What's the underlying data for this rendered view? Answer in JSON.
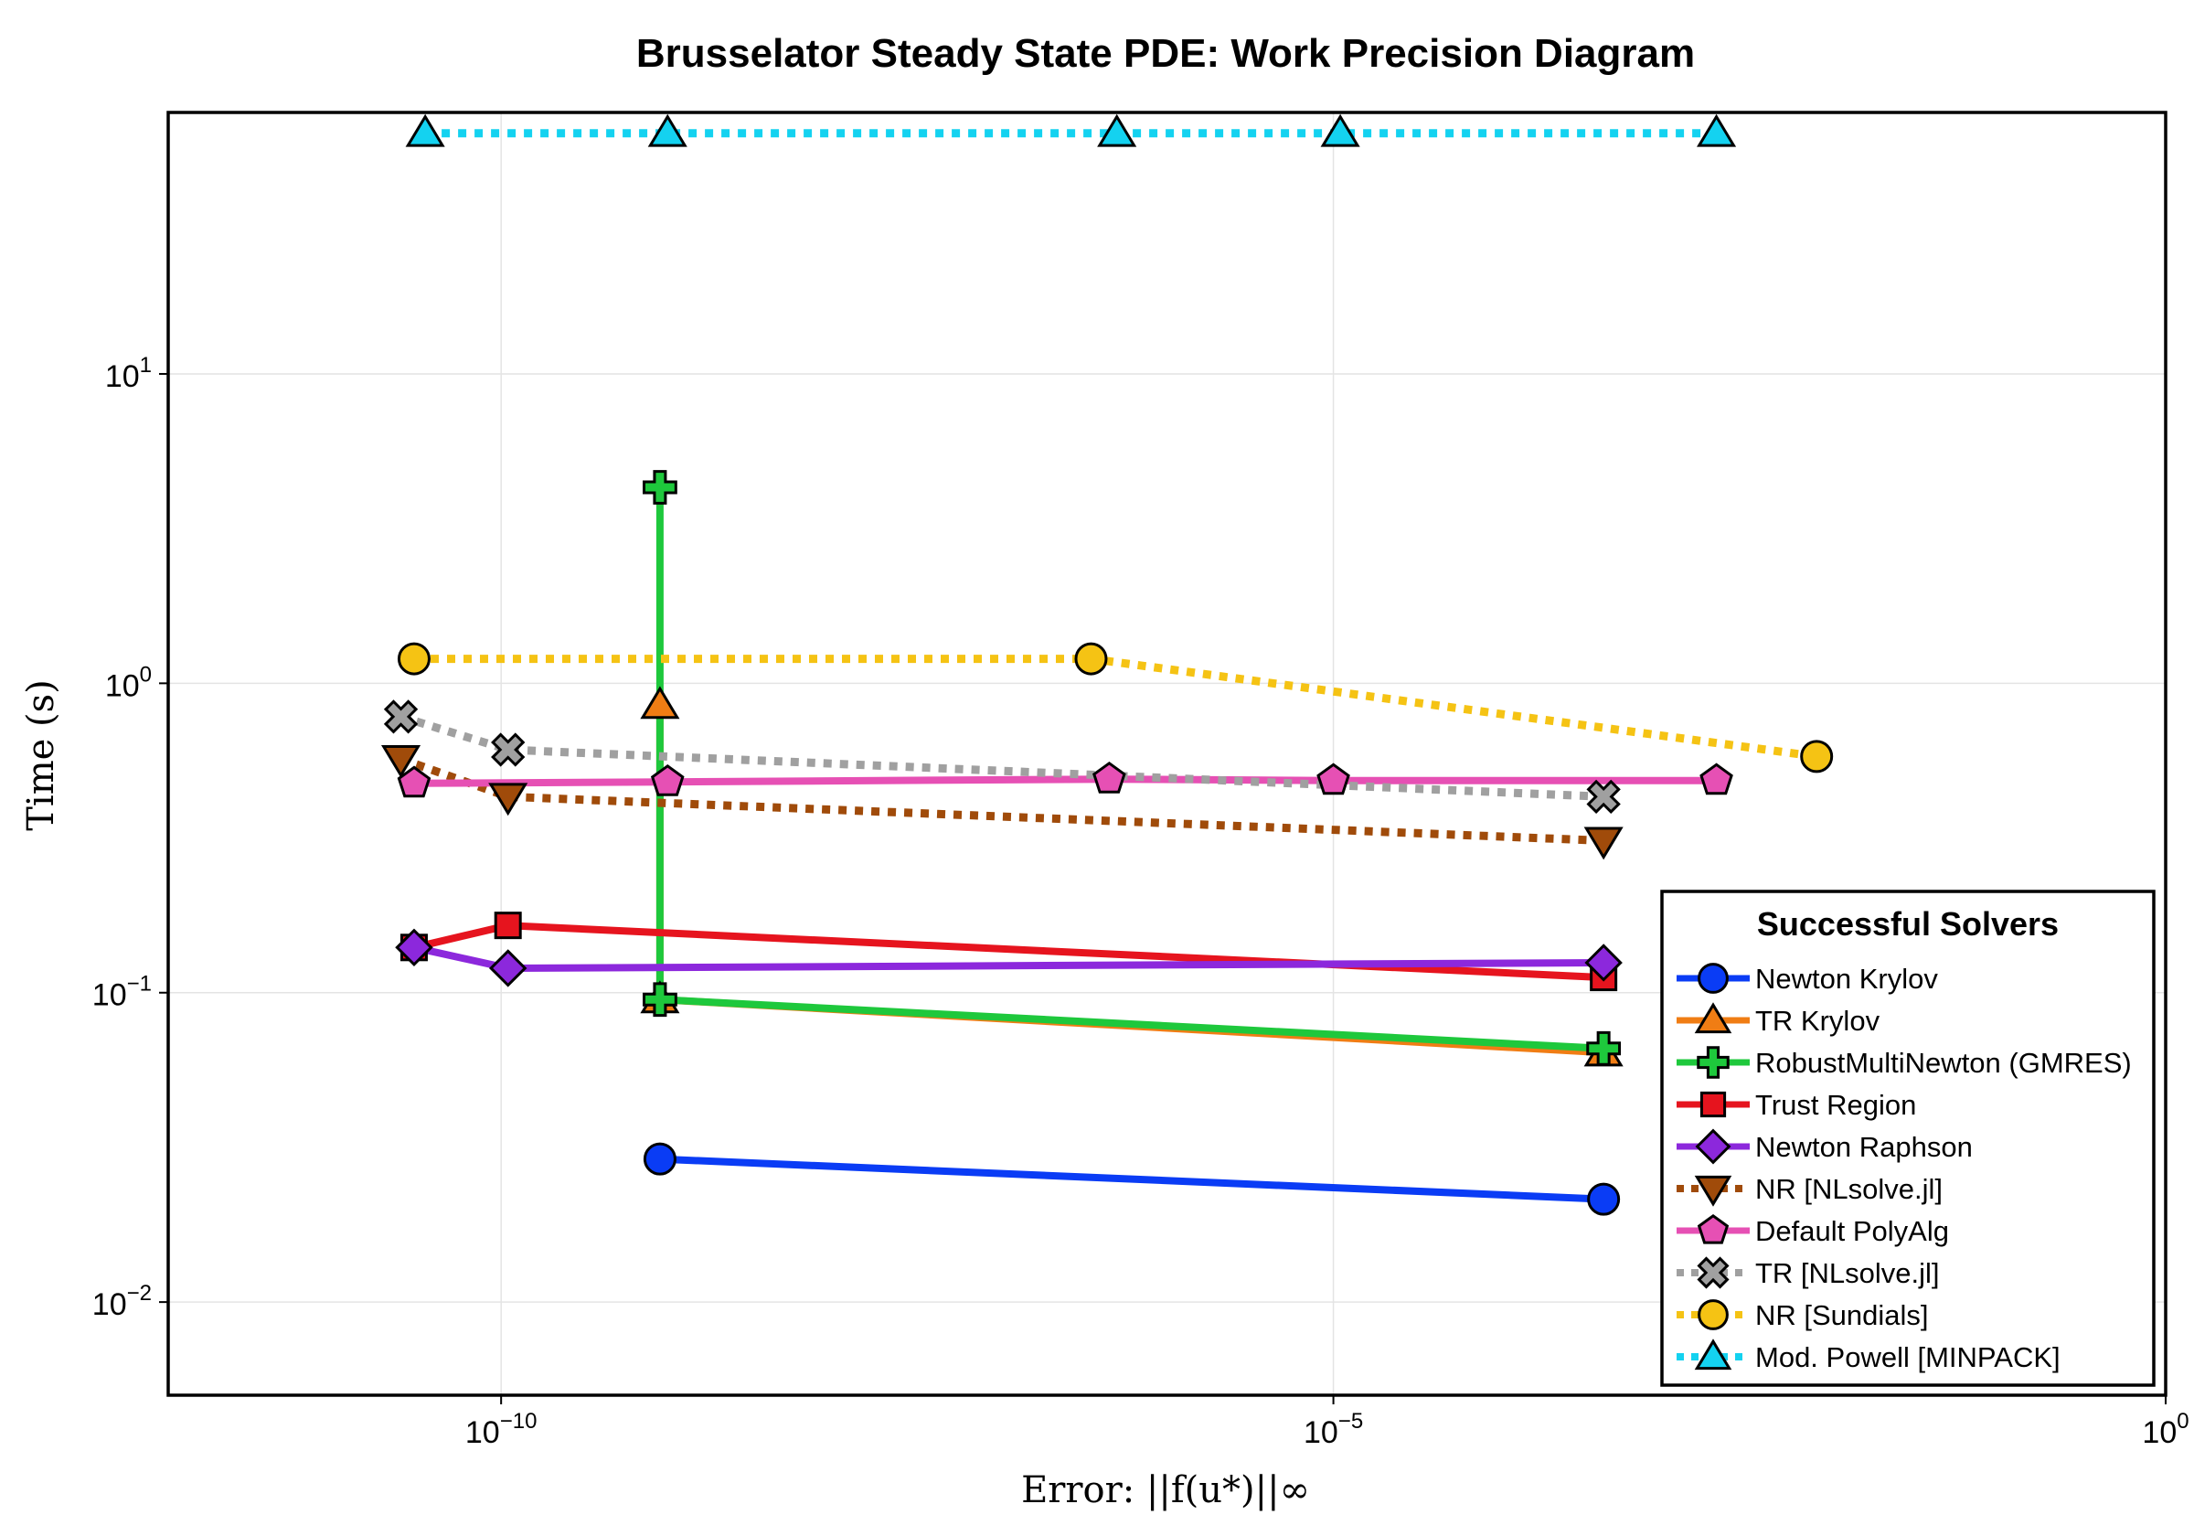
{
  "chart_data": {
    "type": "line",
    "title": "Brusselator Steady State PDE: Work Precision Diagram",
    "xlabel": "Error: ||f(u*)||∞",
    "ylabel": "Time (s)",
    "xscale": "log10",
    "yscale": "log10",
    "xlim": [
      1e-12,
      1
    ],
    "ylim": [
      0.005,
      70
    ],
    "x_ticks": [
      {
        "value": 1e-10,
        "base": "10",
        "exp": "−10"
      },
      {
        "value": 1e-05,
        "base": "10",
        "exp": "−5"
      },
      {
        "value": 1,
        "base": "10",
        "exp": "0"
      }
    ],
    "y_ticks": [
      {
        "value": 0.01,
        "base": "10",
        "exp": "−2"
      },
      {
        "value": 0.1,
        "base": "10",
        "exp": "−1"
      },
      {
        "value": 1,
        "base": "10",
        "exp": "0"
      },
      {
        "value": 10,
        "base": "10",
        "exp": "1"
      }
    ],
    "grid": true,
    "legend": {
      "title": "Successful Solvers",
      "placement": "bottom-right"
    },
    "series": [
      {
        "name": "Newton Krylov",
        "color": "#0a3cf5",
        "dash": "solid",
        "marker": "circle",
        "x": [
          9e-10,
          0.00042
        ],
        "y": [
          0.029,
          0.0215
        ]
      },
      {
        "name": "TR Krylov",
        "color": "#f07d14",
        "dash": "solid",
        "marker": "triangle",
        "x": [
          9e-10,
          9e-10,
          0.00042
        ],
        "y": [
          0.85,
          0.095,
          0.064
        ]
      },
      {
        "name": "RobustMultiNewton (GMRES)",
        "color": "#1ec83c",
        "dash": "solid",
        "marker": "cross",
        "x": [
          9e-10,
          9e-10,
          0.00042
        ],
        "y": [
          4.3,
          0.095,
          0.066
        ]
      },
      {
        "name": "Trust Region",
        "color": "#e6141e",
        "dash": "solid",
        "marker": "square",
        "x": [
          3e-11,
          1.1e-10,
          0.00042
        ],
        "y": [
          0.14,
          0.165,
          0.112
        ]
      },
      {
        "name": "Newton Raphson",
        "color": "#8c28dc",
        "dash": "solid",
        "marker": "diamond",
        "x": [
          3e-11,
          1.1e-10,
          0.00042
        ],
        "y": [
          0.14,
          0.12,
          0.125
        ]
      },
      {
        "name": "NR [NLsolve.jl]",
        "color": "#a04b0a",
        "dash": "dot",
        "marker": "triangle-down",
        "x": [
          2.5e-11,
          1.1e-10,
          0.00042
        ],
        "y": [
          0.57,
          0.43,
          0.31
        ]
      },
      {
        "name": "Default PolyAlg",
        "color": "#e650b4",
        "dash": "solid",
        "marker": "pentagon",
        "x": [
          3e-11,
          1e-09,
          4.5e-07,
          1e-05,
          0.002
        ],
        "y": [
          0.475,
          0.48,
          0.49,
          0.485,
          0.485
        ]
      },
      {
        "name": "TR [NLsolve.jl]",
        "color": "#a0a0a0",
        "dash": "dot",
        "marker": "x",
        "x": [
          2.5e-11,
          1.1e-10,
          0.00042
        ],
        "y": [
          0.78,
          0.61,
          0.43
        ]
      },
      {
        "name": "NR [Sundials]",
        "color": "#f5c314",
        "dash": "dot",
        "marker": "circle",
        "x": [
          3e-11,
          3.5e-07,
          0.008
        ],
        "y": [
          1.2,
          1.2,
          0.58
        ]
      },
      {
        "name": "Mod. Powell [MINPACK]",
        "color": "#14d2f0",
        "dash": "dot",
        "marker": "triangle",
        "x": [
          3.5e-11,
          1e-09,
          5e-07,
          1.1e-05,
          0.002
        ],
        "y": [
          60,
          60,
          60,
          60,
          60
        ]
      }
    ]
  }
}
